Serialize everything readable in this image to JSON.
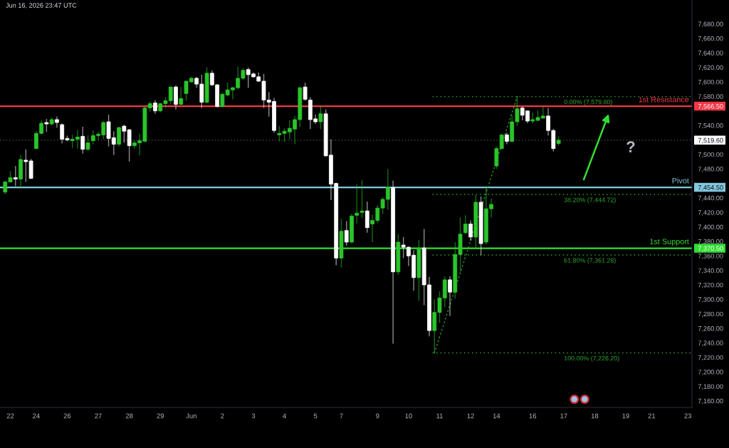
{
  "chart_data": {
    "type": "candlestick",
    "categories": [
      null,
      "22",
      null,
      null,
      null,
      null,
      "24",
      null,
      null,
      null,
      null,
      null,
      "26",
      null,
      null,
      null,
      null,
      null,
      "27",
      null,
      null,
      null,
      null,
      null,
      "28",
      null,
      null,
      null,
      null,
      null,
      "29",
      null,
      null,
      null,
      null,
      null,
      "Jun",
      null,
      null,
      null,
      null,
      null,
      "2",
      null,
      null,
      null,
      null,
      null,
      "3",
      null,
      null,
      null,
      null,
      null,
      "4",
      null,
      null,
      null,
      null,
      null,
      "5",
      null,
      null,
      null,
      null,
      "7",
      null,
      null,
      null,
      null,
      null,
      null,
      "9",
      null,
      null,
      null,
      null,
      null,
      "10",
      null,
      null,
      null,
      null,
      null,
      "11",
      null,
      null,
      null,
      null,
      null,
      "12",
      null,
      null,
      null,
      null,
      "14",
      null,
      null,
      null,
      null,
      null,
      null,
      "16",
      null,
      null,
      null,
      null,
      null,
      "17",
      null,
      null,
      null,
      null,
      null,
      "18",
      null,
      null,
      null,
      null,
      null,
      "19",
      null,
      null,
      null,
      null,
      "21",
      null,
      null,
      null,
      null,
      null,
      null,
      "23"
    ],
    "ohlc": [
      [
        7448,
        7464,
        7445,
        7462
      ],
      [
        7462,
        7477,
        7461,
        7468
      ],
      [
        7468,
        7484,
        7456,
        7466
      ],
      [
        7466,
        7499,
        7453,
        7493
      ],
      [
        7492,
        7507,
        7462,
        7490
      ],
      [
        7491,
        7494,
        7466,
        7467
      ],
      [
        7508,
        7532,
        7508,
        7529
      ],
      [
        7529,
        7547,
        7528,
        7543
      ],
      [
        7544,
        7549,
        7531,
        7542
      ],
      [
        7542,
        7551,
        7540,
        7548
      ],
      [
        7548,
        7552,
        7537,
        7544
      ],
      [
        7541,
        7543,
        7515,
        7521
      ],
      [
        7522,
        7526,
        7518,
        7520
      ],
      [
        7519,
        7527,
        7509,
        7521
      ],
      [
        7521,
        7534,
        7508,
        7524
      ],
      [
        7525,
        7538,
        7501,
        7507
      ],
      [
        7507,
        7526,
        7505,
        7516
      ],
      [
        7519,
        7533,
        7514,
        7526
      ],
      [
        7526,
        7531,
        7520,
        7528
      ],
      [
        7527,
        7546,
        7521,
        7544
      ],
      [
        7545,
        7555,
        7511,
        7522
      ],
      [
        7523,
        7532,
        7499,
        7514
      ],
      [
        7514,
        7538,
        7511,
        7537
      ],
      [
        7539,
        7541,
        7516,
        7532
      ],
      [
        7534,
        7535,
        7490,
        7512
      ],
      [
        7512,
        7520,
        7508,
        7516
      ],
      [
        7516,
        7528,
        7499,
        7519
      ],
      [
        7518,
        7566,
        7517,
        7564
      ],
      [
        7564,
        7573,
        7559,
        7570
      ],
      [
        7571,
        7575,
        7556,
        7560
      ],
      [
        7560,
        7571,
        7558,
        7570
      ],
      [
        7570,
        7579,
        7564,
        7574
      ],
      [
        7574,
        7594,
        7569,
        7593
      ],
      [
        7593,
        7595,
        7562,
        7569
      ],
      [
        7569,
        7593,
        7568,
        7577
      ],
      [
        7584,
        7602,
        7574,
        7601
      ],
      [
        7600,
        7607,
        7599,
        7605
      ],
      [
        7605,
        7607,
        7592,
        7597
      ],
      [
        7597,
        7610,
        7564,
        7572
      ],
      [
        7572,
        7620,
        7570,
        7612
      ],
      [
        7612,
        7616,
        7594,
        7596
      ],
      [
        7596,
        7597,
        7565,
        7566
      ],
      [
        7566,
        7585,
        7565,
        7583
      ],
      [
        7582,
        7599,
        7580,
        7589
      ],
      [
        7589,
        7593,
        7576,
        7592
      ],
      [
        7592,
        7621,
        7590,
        7605
      ],
      [
        7605,
        7619,
        7603,
        7616
      ],
      [
        7617,
        7620,
        7592,
        7610
      ],
      [
        7611,
        7613,
        7606,
        7607
      ],
      [
        7607,
        7613,
        7600,
        7601
      ],
      [
        7601,
        7611,
        7564,
        7575
      ],
      [
        7575,
        7586,
        7552,
        7572
      ],
      [
        7573,
        7578,
        7530,
        7533
      ],
      [
        7527,
        7539,
        7518,
        7529
      ],
      [
        7529,
        7536,
        7517,
        7532
      ],
      [
        7531,
        7547,
        7521,
        7536
      ],
      [
        7535,
        7553,
        7514,
        7548
      ],
      [
        7548,
        7593,
        7538,
        7592
      ],
      [
        7593,
        7599,
        7574,
        7576
      ],
      [
        7575,
        7579,
        7535,
        7548
      ],
      [
        7549,
        7555,
        7542,
        7545
      ],
      [
        7545,
        7567,
        7535,
        7556
      ],
      [
        7556,
        7562,
        7497,
        7498
      ],
      [
        7499,
        7521,
        7437,
        7459
      ],
      [
        7460,
        7461,
        7347,
        7357
      ],
      [
        7357,
        7411,
        7344,
        7394
      ],
      [
        7395,
        7408,
        7374,
        7379
      ],
      [
        7379,
        7418,
        7377,
        7415
      ],
      [
        7416,
        7459,
        7405,
        7419
      ],
      [
        7420,
        7465,
        7412,
        7422
      ],
      [
        7422,
        7435,
        7392,
        7399
      ],
      [
        7404,
        7417,
        7379,
        7409
      ],
      [
        7409,
        7430,
        7405,
        7426
      ],
      [
        7426,
        7441,
        7418,
        7438
      ],
      [
        7438,
        7480,
        7424,
        7455
      ],
      [
        7454,
        7464,
        7239,
        7338
      ],
      [
        7338,
        7390,
        7334,
        7379
      ],
      [
        7375,
        7386,
        7357,
        7372
      ],
      [
        7372,
        7373,
        7346,
        7360
      ],
      [
        7361,
        7368,
        7312,
        7330
      ],
      [
        7330,
        7382,
        7298,
        7371
      ],
      [
        7371,
        7397,
        7292,
        7320
      ],
      [
        7320,
        7331,
        7249,
        7257
      ],
      [
        7257,
        7300,
        7226.2,
        7282
      ],
      [
        7282,
        7311,
        7268,
        7302
      ],
      [
        7302,
        7332,
        7289,
        7327
      ],
      [
        7327,
        7332,
        7277,
        7310
      ],
      [
        7310,
        7379,
        7301,
        7362
      ],
      [
        7362,
        7413,
        7338,
        7390
      ],
      [
        7392,
        7416,
        7390,
        7404
      ],
      [
        7404,
        7409,
        7381,
        7386
      ],
      [
        7386,
        7444,
        7369,
        7434
      ],
      [
        7434,
        7442,
        7361,
        7377
      ],
      [
        7379,
        7455,
        7376,
        7425
      ],
      [
        7425,
        7439,
        7413,
        7431
      ],
      [
        7484,
        7511,
        7480,
        7508
      ],
      [
        7508,
        7528,
        7507,
        7527
      ],
      [
        7527,
        7530,
        7514,
        7518
      ],
      [
        7518,
        7554,
        7517,
        7545
      ],
      [
        7545,
        7579.8,
        7539,
        7563
      ],
      [
        7564,
        7566,
        7547,
        7554
      ],
      [
        7560,
        7561,
        7543,
        7546
      ],
      [
        7546,
        7558,
        7543,
        7548
      ],
      [
        7547,
        7561,
        7546,
        7551
      ],
      [
        7550,
        7566,
        7549,
        7553
      ],
      [
        7553,
        7564,
        7526,
        7533
      ],
      [
        7533,
        7535,
        7504,
        7508
      ],
      [
        7515,
        7525,
        7512,
        7519.6
      ],
      null,
      null,
      null,
      null,
      null,
      null,
      null,
      null,
      null,
      null,
      null,
      null,
      null,
      null,
      null,
      null,
      null,
      null,
      null,
      null,
      null,
      null,
      null,
      null,
      null
    ],
    "colors": [
      "#2ac52a",
      "#2ac52a",
      "#ffffff",
      "#2ac52a",
      "#ffffff",
      "#ffffff",
      "#2ac52a",
      "#2ac52a",
      "#ffffff",
      "#2ac52a",
      "#ffffff",
      "#ffffff",
      "#ffffff",
      "#2ac52a",
      "#2ac52a",
      "#ffffff",
      "#2ac52a",
      "#2ac52a",
      "#2ac52a",
      "#2ac52a",
      "#ffffff",
      "#ffffff",
      "#2ac52a",
      "#ffffff",
      "#ffffff",
      "#2ac52a",
      "#2ac52a",
      "#2ac52a",
      "#2ac52a",
      "#ffffff",
      "#2ac52a",
      "#2ac52a",
      "#2ac52a",
      "#ffffff",
      "#2ac52a",
      "#2ac52a",
      "#2ac52a",
      "#ffffff",
      "#ffffff",
      "#2ac52a",
      "#ffffff",
      "#ffffff",
      "#2ac52a",
      "#2ac52a",
      "#2ac52a",
      "#2ac52a",
      "#2ac52a",
      "#ffffff",
      "#ffffff",
      "#ffffff",
      "#ffffff",
      "#ffffff",
      "#ffffff",
      "#2ac52a",
      "#2ac52a",
      "#2ac52a",
      "#2ac52a",
      "#2ac52a",
      "#ffffff",
      "#ffffff",
      "#ffffff",
      "#2ac52a",
      "#ffffff",
      "#ffffff",
      "#ffffff",
      "#2ac52a",
      "#ffffff",
      "#2ac52a",
      "#2ac52a",
      "#2ac52a",
      "#ffffff",
      "#2ac52a",
      "#2ac52a",
      "#2ac52a",
      "#2ac52a",
      "#ffffff",
      "#2ac52a",
      "#ffffff",
      "#ffffff",
      "#ffffff",
      "#2ac52a",
      "#ffffff",
      "#ffffff",
      "#2ac52a",
      "#2ac52a",
      "#2ac52a",
      "#ffffff",
      "#2ac52a",
      "#2ac52a",
      "#2ac52a",
      "#ffffff",
      "#2ac52a",
      "#ffffff",
      "#2ac52a",
      "#2ac52a",
      "#2ac52a",
      "#2ac52a",
      "#ffffff",
      "#2ac52a",
      "#2ac52a",
      "#ffffff",
      "#ffffff",
      "#2ac52a",
      "#2ac52a",
      "#2ac52a",
      "#ffffff",
      "#ffffff",
      "#2ac52a",
      null,
      null,
      null,
      null,
      null,
      null,
      null,
      null,
      null,
      null,
      null,
      null,
      null,
      null,
      null,
      null,
      null,
      null,
      null,
      null,
      null,
      null,
      null,
      null,
      null
    ],
    "series": [
      {
        "type": "line",
        "color": "#2a9c2a",
        "line_style": "dotted",
        "values": [
          null,
          null,
          null,
          null,
          null,
          null,
          null,
          null,
          null,
          null,
          null,
          null,
          null,
          null,
          null,
          null,
          null,
          null,
          null,
          null,
          null,
          null,
          null,
          null,
          null,
          null,
          null,
          null,
          null,
          null,
          null,
          null,
          null,
          null,
          null,
          null,
          null,
          null,
          null,
          null,
          null,
          null,
          null,
          null,
          null,
          null,
          null,
          null,
          null,
          null,
          null,
          null,
          null,
          null,
          null,
          null,
          null,
          null,
          null,
          null,
          null,
          null,
          null,
          null,
          null,
          null,
          null,
          null,
          null,
          null,
          null,
          null,
          null,
          null,
          null,
          null,
          null,
          null,
          null,
          null,
          null,
          null,
          null,
          7226.2,
          null,
          null,
          null,
          null,
          null,
          null,
          null,
          null,
          null,
          null,
          null,
          null,
          null,
          null,
          null,
          7579.8,
          null,
          null,
          null,
          null,
          null,
          null,
          null,
          null,
          null,
          null,
          null,
          null,
          null,
          null,
          null,
          null,
          null,
          null,
          null,
          null,
          null,
          null,
          null,
          null,
          null,
          null,
          null,
          null,
          null,
          null,
          null,
          null,
          null
        ]
      }
    ],
    "ylim": [
      7151,
      7713
    ],
    "yticks": [
      {
        "value": 7160,
        "label": "7,160.00"
      },
      {
        "value": 7180,
        "label": "7,180.00"
      },
      {
        "value": 7200,
        "label": "7,200.00"
      },
      {
        "value": 7220,
        "label": "7,220.00"
      },
      {
        "value": 7240,
        "label": "7,240.00"
      },
      {
        "value": 7260,
        "label": "7,260.00"
      },
      {
        "value": 7280,
        "label": "7,280.00"
      },
      {
        "value": 7300,
        "label": "7,300.00"
      },
      {
        "value": 7320,
        "label": "7,320.00"
      },
      {
        "value": 7340,
        "label": "7,340.00"
      },
      {
        "value": 7360,
        "label": "7,360.00"
      },
      {
        "value": 7370.5,
        "label": "7,370.50"
      },
      {
        "value": 7380,
        "label": "7,380.00"
      },
      {
        "value": 7400,
        "label": "7,400.00"
      },
      {
        "value": 7420,
        "label": "7,420.00"
      },
      {
        "value": 7440,
        "label": "7,440.00"
      },
      {
        "value": 7454.5,
        "label": "7,454.50"
      },
      {
        "value": 7480,
        "label": "7,480.00"
      },
      {
        "value": 7500,
        "label": "7,500.00"
      },
      {
        "value": 7519.6,
        "label": "7,519.60"
      },
      {
        "value": 7540,
        "label": "7,540.00"
      },
      {
        "value": 7566.5,
        "label": "7,566.50"
      },
      {
        "value": 7580,
        "label": "7,580.00"
      },
      {
        "value": 7600,
        "label": "7,600.00"
      },
      {
        "value": 7620,
        "label": "7,620.00"
      },
      {
        "value": 7640,
        "label": "7,640.00"
      },
      {
        "value": 7660,
        "label": "7,660.00"
      },
      {
        "value": 7680,
        "label": "7,680.00"
      }
    ],
    "ref_lines": [
      {
        "axis": "y",
        "value": 7566.5,
        "label": "1st Resistance",
        "color": "#f23645",
        "line_style": "solid"
      },
      {
        "axis": "y",
        "value": 7454.5,
        "label": "Pivot",
        "color": "#82c8de",
        "line_style": "solid"
      },
      {
        "axis": "y",
        "value": 7370.5,
        "label": "1st Support",
        "color": "#33dd33",
        "line_style": "solid"
      },
      {
        "axis": "y",
        "value": 7519.6,
        "color": "#ffffff",
        "line_style": "dotted"
      },
      {
        "axis": "y",
        "value": 7579.8,
        "label": "0.00% (7,579.80)",
        "color": "#2eaa2e",
        "line_style": "dotted"
      },
      {
        "axis": "y",
        "value": 7444.72,
        "label": "38.20% (7,444.72)",
        "color": "#2eaa2e",
        "line_style": "dotted"
      },
      {
        "axis": "y",
        "value": 7361.28,
        "label": "61.80% (7,361.28)",
        "color": "#2eaa2e",
        "line_style": "dotted"
      },
      {
        "axis": "y",
        "value": 7226.2,
        "label": "100.00% (7,226.20)",
        "color": "#2eaa2e",
        "line_style": "dotted"
      }
    ],
    "annotations": [
      "Jun 16, 2026 23:47 UTC",
      "?"
    ]
  }
}
